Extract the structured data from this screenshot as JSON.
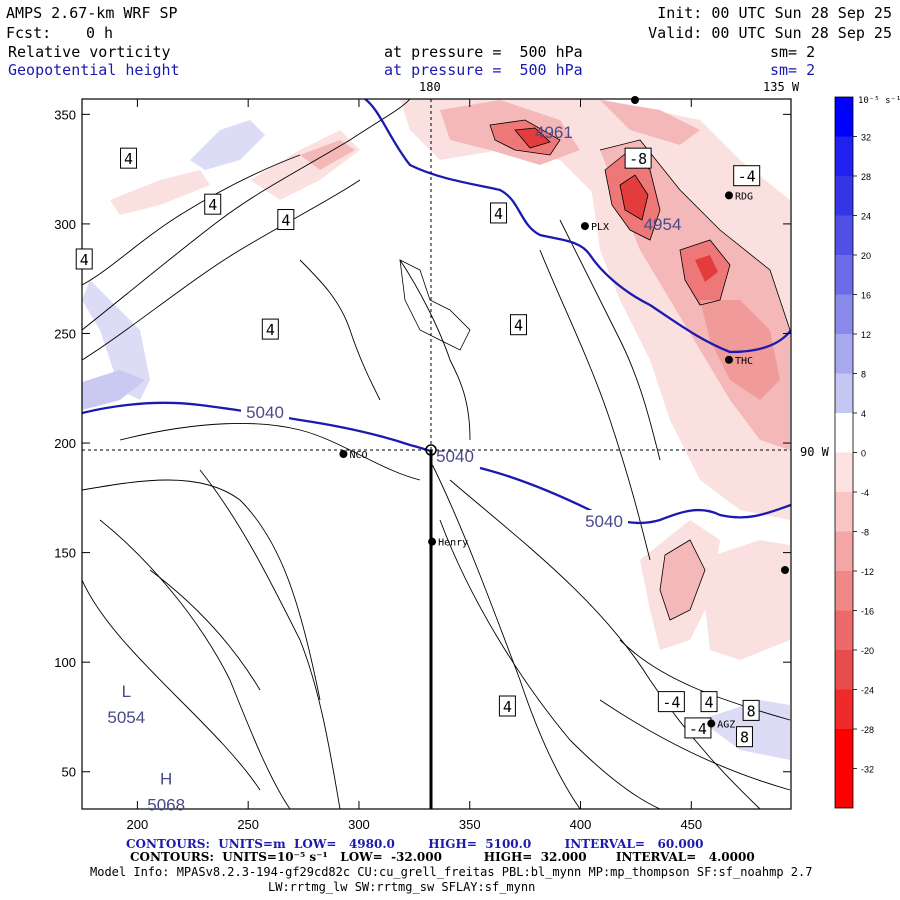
{
  "header": {
    "model": "AMPS 2.67-km WRF SP",
    "fcst_label": "Fcst:",
    "fcst_value": "0 h",
    "init": "Init: 00 UTC Sun 28 Sep 25",
    "valid": "Valid: 00 UTC Sun 28 Sep 25",
    "field1": "Relative vorticity",
    "field1_level": "at pressure =  500 hPa",
    "field1_sm": "sm= 2",
    "field2": "Geopotential height",
    "field2_level": "at pressure =  500 hPa",
    "field2_sm": "sm= 2"
  },
  "chart_data": {
    "type": "contour-map",
    "title": "Relative vorticity and Geopotential height at 500 hPa",
    "x_ticks": [
      200,
      250,
      300,
      350,
      400,
      450
    ],
    "y_ticks": [
      50,
      100,
      150,
      200,
      250,
      300,
      350
    ],
    "xlim": [
      175,
      495
    ],
    "ylim": [
      33,
      357
    ],
    "longitude_labels": [
      "180",
      "135 W",
      "90 W"
    ],
    "colorbar": {
      "unit": "10⁻⁵ s⁻¹",
      "levels": [
        32,
        28,
        24,
        20,
        16,
        12,
        8,
        4,
        0,
        -4,
        -8,
        -12,
        -16,
        -20,
        -24,
        -28,
        -32
      ],
      "colors": [
        "#0000ff",
        "#2020f0",
        "#3535e8",
        "#5050e6",
        "#6c6ce8",
        "#8a8aea",
        "#a8a8ee",
        "#c6c6f2",
        "#ffffff",
        "#fce1e1",
        "#f8c4c4",
        "#f4a6a6",
        "#f08888",
        "#ec6a6a",
        "#e84c4c",
        "#ee2a2a",
        "#ff0000"
      ]
    },
    "height_contours": [
      {
        "label": "5040",
        "value": 5040
      }
    ],
    "extrema": [
      {
        "type": "L",
        "value": "5054",
        "x": 195,
        "y": 75
      },
      {
        "type": "H",
        "value": "5068",
        "x": 213,
        "y": 35
      },
      {
        "type": "",
        "value": "4961",
        "x": 388,
        "y": 342
      },
      {
        "type": "",
        "value": "4954",
        "x": 437,
        "y": 300
      }
    ],
    "vorticity_labels": [
      {
        "v": "4",
        "x": 196,
        "y": 330
      },
      {
        "v": "4",
        "x": 234,
        "y": 309
      },
      {
        "v": "4",
        "x": 267,
        "y": 302
      },
      {
        "v": "4",
        "x": 176,
        "y": 284
      },
      {
        "v": "4",
        "x": 260,
        "y": 252
      },
      {
        "v": "4",
        "x": 363,
        "y": 305
      },
      {
        "v": "4",
        "x": 372,
        "y": 254
      },
      {
        "v": "-8",
        "x": 426,
        "y": 330
      },
      {
        "v": "-4",
        "x": 475,
        "y": 322
      },
      {
        "v": "-4",
        "x": 441,
        "y": 82
      },
      {
        "v": "4",
        "x": 458,
        "y": 82
      },
      {
        "v": "8",
        "x": 477,
        "y": 78
      },
      {
        "v": "-4",
        "x": 453,
        "y": 70
      },
      {
        "v": "8",
        "x": 474,
        "y": 66
      },
      {
        "v": "4",
        "x": 367,
        "y": 80
      }
    ],
    "stations": [
      {
        "name": "NCO",
        "x": 293,
        "y": 195
      },
      {
        "name": "PLX",
        "x": 402,
        "y": 299
      },
      {
        "name": "RDG",
        "x": 467,
        "y": 313
      },
      {
        "name": "THC",
        "x": 467,
        "y": 238
      },
      {
        "name": "Henry",
        "x": 333,
        "y": 155
      },
      {
        "name": "AGZ",
        "x": 459,
        "y": 72
      }
    ],
    "cross_section": {
      "x": 334,
      "y": 196
    }
  },
  "footer": {
    "line1": "CONTOURS:  UNITS=m  LOW=   4980.0        HIGH=  5100.0        INTERVAL=   60.000",
    "line2": "CONTOURS:  UNITS=10⁻⁵ s⁻¹   LOW=  -32.000          HIGH=  32.000       INTERVAL=   4.0000",
    "line3": "Model Info: MPASv8.2.3-194-gf29cd82c CU:cu_grell_freitas PBL:bl_mynn MP:mp_thompson SF:sf_noahmp 2.7",
    "line4": "LW:rrtmg_lw SW:rrtmg_sw SFLAY:sf_mynn"
  },
  "colors": {
    "height_line": "#1a1ab0",
    "label_text": "#4a4a8a"
  }
}
